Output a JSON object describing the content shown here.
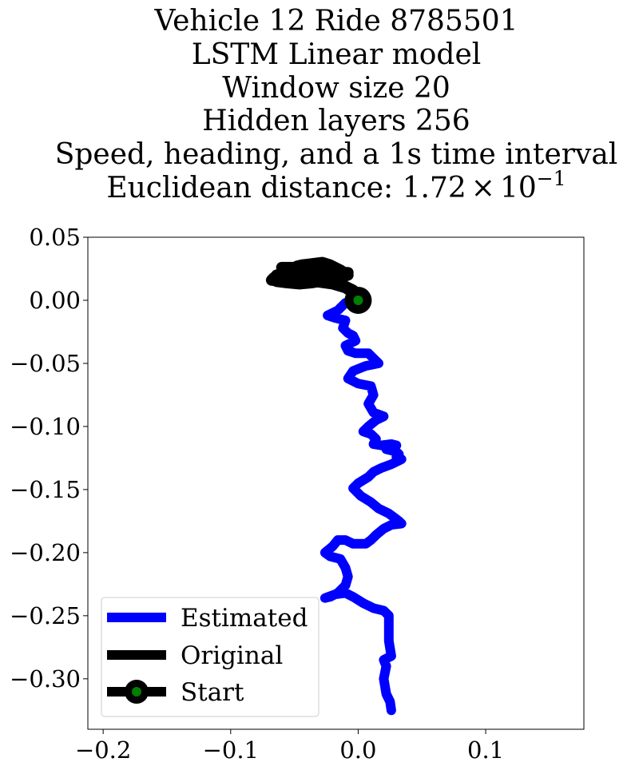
{
  "chart_data": {
    "type": "line",
    "title_lines": [
      "Vehicle 12 Ride 8785501",
      "LSTM Linear model",
      "Window size 20",
      "Hidden layers 256",
      "Speed, heading, and a 1s time interval"
    ],
    "title_distance_prefix": "Euclidean distance: 1.72",
    "title_distance_times": "×",
    "title_distance_base": "10",
    "title_distance_exp": "−1",
    "xlim": [
      -0.212,
      0.177
    ],
    "ylim": [
      -0.34,
      0.05
    ],
    "xticks": [
      -0.2,
      -0.1,
      0.0,
      0.1
    ],
    "xtick_labels": [
      "−0.2",
      "−0.1",
      "0.0",
      "0.1"
    ],
    "yticks": [
      0.05,
      0.0,
      -0.05,
      -0.1,
      -0.15,
      -0.2,
      -0.25,
      -0.3
    ],
    "ytick_labels": [
      "0.05",
      "0.00",
      "−0.05",
      "−0.10",
      "−0.15",
      "−0.20",
      "−0.25",
      "−0.30"
    ],
    "legend_position": "lower-left",
    "series": [
      {
        "name": "Estimated",
        "color": "#0000ff",
        "points": [
          [
            0,
            0
          ],
          [
            -0.01,
            -0.002
          ],
          [
            -0.016,
            -0.008
          ],
          [
            -0.024,
            -0.012
          ],
          [
            -0.018,
            -0.014
          ],
          [
            -0.01,
            -0.016
          ],
          [
            -0.012,
            -0.022
          ],
          [
            -0.008,
            -0.026
          ],
          [
            -0.004,
            -0.028
          ],
          [
            -0.002,
            -0.032
          ],
          [
            -0.01,
            -0.036
          ],
          [
            -0.008,
            -0.04
          ],
          [
            -0.002,
            -0.042
          ],
          [
            0.008,
            -0.042
          ],
          [
            0.012,
            -0.046
          ],
          [
            0.016,
            -0.05
          ],
          [
            0.006,
            -0.052
          ],
          [
            -0.004,
            -0.056
          ],
          [
            -0.008,
            -0.062
          ],
          [
            0.0,
            -0.066
          ],
          [
            0.01,
            -0.068
          ],
          [
            0.012,
            -0.075
          ],
          [
            0.008,
            -0.082
          ],
          [
            0.012,
            -0.089
          ],
          [
            0.02,
            -0.092
          ],
          [
            0.014,
            -0.095
          ],
          [
            0.008,
            -0.1
          ],
          [
            0.004,
            -0.104
          ],
          [
            0.01,
            -0.106
          ],
          [
            0.014,
            -0.11
          ],
          [
            0.012,
            -0.114
          ],
          [
            0.018,
            -0.115
          ],
          [
            0.026,
            -0.114
          ],
          [
            0.03,
            -0.115
          ],
          [
            0.022,
            -0.118
          ],
          [
            0.03,
            -0.12
          ],
          [
            0.032,
            -0.122
          ],
          [
            0.03,
            -0.124
          ],
          [
            0.034,
            -0.126
          ],
          [
            0.026,
            -0.13
          ],
          [
            0.018,
            -0.133
          ],
          [
            0.012,
            -0.136
          ],
          [
            0.008,
            -0.14
          ],
          [
            0.0,
            -0.145
          ],
          [
            -0.004,
            -0.149
          ],
          [
            0.002,
            -0.155
          ],
          [
            0.01,
            -0.16
          ],
          [
            0.016,
            -0.165
          ],
          [
            0.024,
            -0.169
          ],
          [
            0.028,
            -0.172
          ],
          [
            0.032,
            -0.175
          ],
          [
            0.034,
            -0.177
          ],
          [
            0.026,
            -0.178
          ],
          [
            0.02,
            -0.181
          ],
          [
            0.014,
            -0.186
          ],
          [
            0.01,
            -0.19
          ],
          [
            0.006,
            -0.193
          ],
          [
            -0.004,
            -0.193
          ],
          [
            -0.01,
            -0.19
          ],
          [
            -0.016,
            -0.19
          ],
          [
            -0.02,
            -0.195
          ],
          [
            -0.026,
            -0.2
          ],
          [
            -0.022,
            -0.203
          ],
          [
            -0.014,
            -0.205
          ],
          [
            -0.01,
            -0.212
          ],
          [
            -0.008,
            -0.219
          ],
          [
            -0.01,
            -0.226
          ],
          [
            -0.016,
            -0.232
          ],
          [
            -0.022,
            -0.235
          ],
          [
            -0.026,
            -0.236
          ],
          [
            -0.018,
            -0.233
          ],
          [
            -0.01,
            -0.232
          ],
          [
            -0.004,
            -0.235
          ],
          [
            0.004,
            -0.24
          ],
          [
            0.012,
            -0.244
          ],
          [
            0.02,
            -0.246
          ],
          [
            0.024,
            -0.25
          ],
          [
            0.024,
            -0.26
          ],
          [
            0.024,
            -0.27
          ],
          [
            0.026,
            -0.282
          ],
          [
            0.02,
            -0.285
          ],
          [
            0.022,
            -0.29
          ],
          [
            0.02,
            -0.3
          ],
          [
            0.022,
            -0.312
          ],
          [
            0.025,
            -0.318
          ],
          [
            0.026,
            -0.325
          ]
        ]
      },
      {
        "name": "Original",
        "color": "#000000",
        "points": [
          [
            0,
            0
          ],
          [
            -0.004,
            0.008
          ],
          [
            -0.012,
            0.012
          ],
          [
            -0.02,
            0.016
          ],
          [
            -0.03,
            0.018
          ],
          [
            -0.04,
            0.017
          ],
          [
            -0.05,
            0.016
          ],
          [
            -0.06,
            0.015
          ],
          [
            -0.068,
            0.016
          ],
          [
            -0.066,
            0.018
          ],
          [
            -0.056,
            0.019
          ],
          [
            -0.048,
            0.018
          ],
          [
            -0.04,
            0.017
          ],
          [
            -0.032,
            0.018
          ],
          [
            -0.024,
            0.019
          ],
          [
            -0.016,
            0.02
          ],
          [
            -0.008,
            0.022
          ],
          [
            -0.016,
            0.022
          ],
          [
            -0.03,
            0.021
          ],
          [
            -0.04,
            0.02
          ],
          [
            -0.05,
            0.019
          ],
          [
            -0.06,
            0.019
          ],
          [
            -0.064,
            0.02
          ],
          [
            -0.058,
            0.021
          ],
          [
            -0.05,
            0.022
          ],
          [
            -0.042,
            0.022
          ],
          [
            -0.034,
            0.023
          ],
          [
            -0.026,
            0.024
          ],
          [
            -0.02,
            0.025
          ],
          [
            -0.03,
            0.026
          ],
          [
            -0.04,
            0.025
          ],
          [
            -0.05,
            0.024
          ],
          [
            -0.058,
            0.025
          ],
          [
            -0.06,
            0.026
          ],
          [
            -0.05,
            0.026
          ],
          [
            -0.04,
            0.026
          ],
          [
            -0.032,
            0.027
          ],
          [
            -0.026,
            0.028
          ],
          [
            -0.034,
            0.029
          ],
          [
            -0.04,
            0.028
          ],
          [
            -0.048,
            0.027
          ],
          [
            -0.044,
            0.028
          ],
          [
            -0.036,
            0.029
          ],
          [
            -0.028,
            0.03
          ],
          [
            -0.022,
            0.028
          ],
          [
            -0.014,
            0.024
          ],
          [
            -0.008,
            0.02
          ],
          [
            -0.014,
            0.018
          ],
          [
            -0.024,
            0.016
          ],
          [
            -0.036,
            0.014
          ],
          [
            -0.046,
            0.013
          ],
          [
            -0.056,
            0.014
          ],
          [
            -0.064,
            0.015
          ],
          [
            -0.056,
            0.016
          ],
          [
            -0.046,
            0.016
          ],
          [
            -0.034,
            0.015
          ],
          [
            -0.02,
            0.013
          ],
          [
            -0.01,
            0.01
          ],
          [
            -0.004,
            0.006
          ],
          [
            0,
            0.002
          ]
        ]
      },
      {
        "name": "Start",
        "color": "#000000",
        "marker_fill": "#008000",
        "points": [
          [
            0,
            0
          ]
        ]
      }
    ]
  }
}
